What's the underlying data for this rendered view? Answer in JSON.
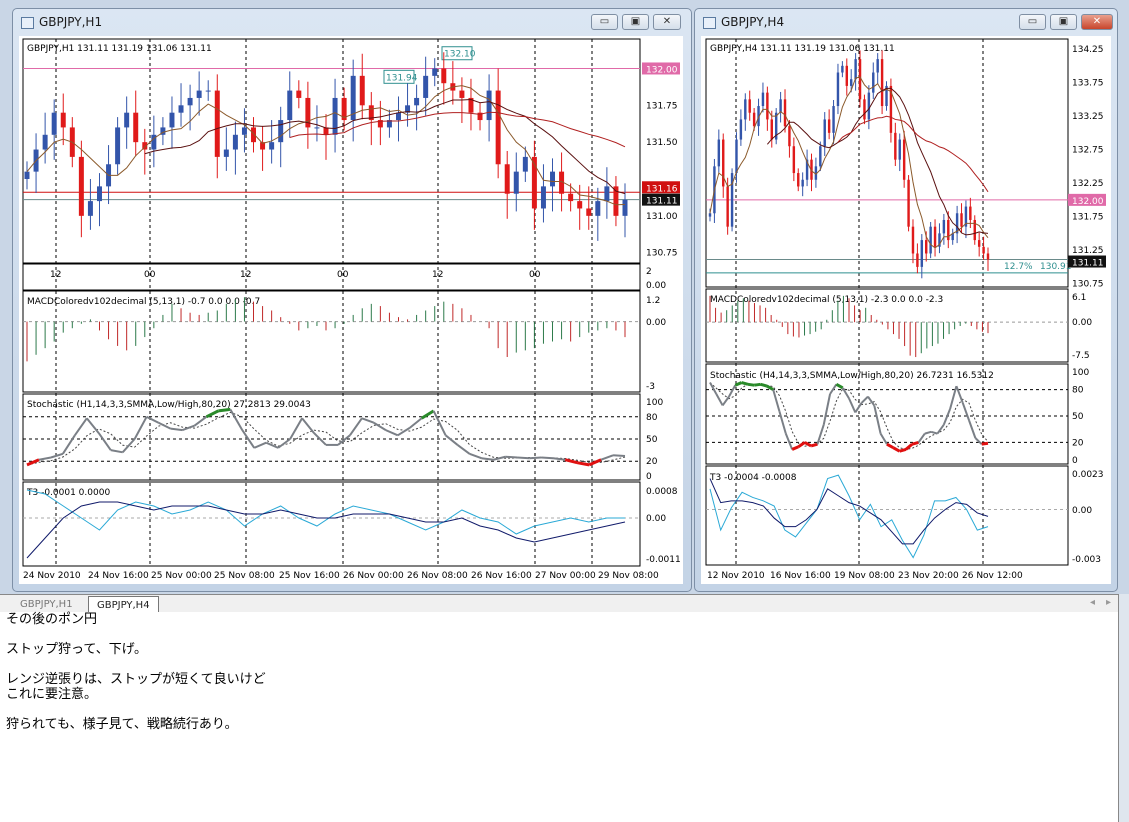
{
  "colors": {
    "bull": "#3355aa",
    "bear": "#e01a1a",
    "pink_line": "#e06aa8",
    "red_line": "#d01010",
    "teal": "#2f8f8f",
    "stoch": "#7a7f86",
    "macd_up": "#2c7a4a",
    "macd_dn": "#c02828",
    "t3_fast": "#2aa9d6",
    "t3_slow": "#101a6a"
  },
  "tabs": [
    {
      "label": "GBPJPY,H1",
      "active": false
    },
    {
      "label": "GBPJPY,H4",
      "active": true
    }
  ],
  "memo": {
    "lines": [
      "その後のポン円",
      "",
      "ストップ狩って、下げ。",
      "",
      "レンジ逆張りは、ストップが短くて良いけど",
      "これに要注意。",
      "",
      "狩られても、様子見て、戦略続行あり。"
    ]
  },
  "windows": [
    {
      "title": "GBPJPY,H1",
      "icon": "chart-window-icon",
      "buttons": {
        "minimize": "▭",
        "maximize": "▣",
        "close": "✕"
      },
      "info": "GBPJPY,H1  131.11 131.19 131.06 131.11",
      "price_axis": [
        "131.75",
        "131.50",
        "131.00",
        "130.75"
      ],
      "price_axis_values": [
        131.75,
        131.5,
        131.0,
        130.75
      ],
      "ylim": [
        130.68,
        132.2
      ],
      "hlines": [
        {
          "value": 132.0,
          "label": "132.00",
          "color": "#e06aa8"
        },
        {
          "value": 131.16,
          "label": "131.16",
          "color": "#d01010"
        },
        {
          "value": 131.11,
          "label": "131.11",
          "color": "#111111"
        }
      ],
      "boxes": [
        {
          "label": "132.10",
          "value": 132.1
        },
        {
          "label": "131.94",
          "value": 131.94
        }
      ],
      "closes": [
        131.3,
        131.45,
        131.55,
        131.7,
        131.6,
        131.4,
        131.0,
        131.1,
        131.2,
        131.35,
        131.6,
        131.7,
        131.5,
        131.45,
        131.55,
        131.6,
        131.7,
        131.75,
        131.8,
        131.85,
        131.85,
        131.4,
        131.45,
        131.55,
        131.6,
        131.5,
        131.45,
        131.5,
        131.65,
        131.85,
        131.8,
        131.6,
        131.6,
        131.55,
        131.8,
        131.65,
        131.95,
        131.75,
        131.65,
        131.6,
        131.65,
        131.7,
        131.75,
        131.8,
        131.95,
        132.0,
        131.9,
        131.85,
        131.8,
        131.7,
        131.65,
        131.85,
        131.35,
        131.15,
        131.3,
        131.4,
        131.05,
        131.2,
        131.3,
        131.15,
        131.1,
        131.05,
        131.0,
        131.1,
        131.2,
        131.0,
        131.11
      ],
      "hour_strip": {
        "labels": [
          "12",
          "00",
          "12",
          "00",
          "12",
          "00"
        ],
        "axis": [
          "2",
          "0.00"
        ]
      },
      "macd": {
        "label": "MACDColoredv102decimal (5,13,1) -0.7 0.0 0.0 -0.7",
        "axis": [
          "1.2",
          "0.00",
          "-3"
        ],
        "ylim": [
          -3,
          1.2
        ],
        "values": [
          -1.8,
          -1.5,
          -1.2,
          -0.9,
          -0.5,
          -0.3,
          -0.1,
          0.1,
          -0.4,
          -0.8,
          -1.1,
          -1.3,
          -1.1,
          -0.7,
          -0.3,
          0.3,
          0.8,
          0.6,
          0.4,
          0.3,
          0.4,
          0.5,
          0.8,
          1.0,
          1.1,
          0.9,
          0.7,
          0.5,
          0.2,
          -0.1,
          -0.4,
          -0.3,
          -0.2,
          -0.4,
          -0.3,
          -0.1,
          0.3,
          0.6,
          0.8,
          0.7,
          0.4,
          0.2,
          0.1,
          0.3,
          0.5,
          0.7,
          0.9,
          0.8,
          0.6,
          0.3,
          0.0,
          -0.3,
          -1.2,
          -1.6,
          -1.4,
          -1.3,
          -1.2,
          -1.0,
          -0.9,
          -0.8,
          -0.9,
          -0.7,
          -0.5,
          -0.4,
          -0.3,
          -0.4,
          -0.7
        ]
      },
      "stoch": {
        "label": "Stochastic (H1,14,3,3,SMMA,Low/High,80,20) 27.2813 29.0043",
        "axis": [
          "100",
          "80",
          "50",
          "20",
          "0"
        ],
        "levels": [
          80,
          50,
          20
        ],
        "main": [
          15,
          22,
          25,
          30,
          55,
          78,
          58,
          35,
          32,
          50,
          80,
          72,
          64,
          62,
          68,
          80,
          88,
          90,
          62,
          38,
          45,
          38,
          50,
          78,
          58,
          42,
          42,
          55,
          78,
          72,
          62,
          55,
          65,
          78,
          88,
          55,
          42,
          30,
          24,
          22,
          26,
          25,
          24,
          25,
          24,
          22,
          18,
          15,
          22,
          28,
          27
        ]
      },
      "t3": {
        "label": "T3 -0.0001 0.0000",
        "axis": [
          "0.0008",
          "0.00",
          "-0.0011"
        ],
        "ylim": [
          -0.0011,
          0.0008
        ],
        "fast": [
          0.0007,
          0.0006,
          0.0003,
          0.0,
          -0.0003,
          0.0002,
          0.0004,
          0.0003,
          0.0001,
          0.0002,
          0.0004,
          0.0002,
          -0.0002,
          0.0001,
          0.0003,
          0.0,
          -0.0002,
          0.0001,
          0.0003,
          0.0002,
          0.0001,
          -0.0001,
          -0.0003,
          -0.0001,
          0.0002,
          0.0,
          -0.0001,
          -0.0004,
          -0.0002,
          -0.0001,
          0.0,
          -0.0001,
          0.0,
          0.0
        ],
        "slow": [
          -0.001,
          -0.0005,
          0.0,
          0.0003,
          0.0004,
          0.0004,
          0.0003,
          0.0002,
          0.0003,
          0.0003,
          0.0003,
          0.0002,
          0.0001,
          0.0001,
          0.0002,
          0.0001,
          0.0,
          0.0,
          0.0001,
          0.0001,
          0.0001,
          0.0,
          -0.0001,
          -0.0001,
          0.0,
          -0.0002,
          -0.0003,
          -0.0005,
          -0.0006,
          -0.0005,
          -0.0004,
          -0.0003,
          -0.0002,
          -0.0001
        ]
      },
      "dates": [
        "24 Nov 2010",
        "24 Nov 16:00",
        "25 Nov 00:00",
        "25 Nov 08:00",
        "25 Nov 16:00",
        "26 Nov 00:00",
        "26 Nov 08:00",
        "26 Nov 16:00",
        "27 Nov 00:00",
        "29 Nov 08:00"
      ]
    },
    {
      "title": "GBPJPY,H4",
      "icon": "chart-window-icon",
      "buttons": {
        "minimize": "▭",
        "maximize": "▣",
        "close": "✕"
      },
      "info": "GBPJPY,H4  131.11 131.19 131.06 131.11",
      "price_axis": [
        "134.25",
        "133.75",
        "133.25",
        "132.75",
        "132.25",
        "131.75",
        "131.25",
        "130.75"
      ],
      "price_axis_values": [
        134.25,
        133.75,
        133.25,
        132.75,
        132.25,
        131.75,
        131.25,
        130.75
      ],
      "ylim": [
        130.7,
        134.4
      ],
      "hlines": [
        {
          "value": 132.0,
          "label": "132.00",
          "color": "#e06aa8"
        },
        {
          "value": 131.11,
          "label": "131.11",
          "color": "#111111"
        }
      ],
      "fib": {
        "label": "12.7%",
        "value_label": "130.91",
        "value": 130.91
      },
      "closes": [
        131.8,
        132.5,
        132.9,
        132.2,
        131.6,
        132.4,
        132.9,
        133.2,
        133.5,
        133.3,
        133.1,
        133.4,
        133.6,
        133.2,
        132.9,
        133.3,
        133.5,
        133.1,
        132.8,
        132.4,
        132.2,
        132.3,
        132.6,
        132.3,
        132.5,
        132.8,
        133.2,
        133.0,
        133.4,
        133.9,
        134.0,
        133.7,
        133.8,
        134.1,
        133.5,
        133.2,
        133.6,
        133.9,
        134.1,
        133.4,
        133.7,
        133.0,
        132.6,
        132.9,
        132.3,
        131.6,
        131.2,
        131.0,
        131.4,
        131.2,
        131.6,
        131.3,
        131.5,
        131.7,
        131.4,
        131.5,
        131.8,
        131.6,
        131.9,
        131.7,
        131.4,
        131.3,
        131.2,
        131.11
      ],
      "macd": {
        "label": "MACDColoredv102decimal (5,13,1) -2.3 0.0 0.0 -2.3",
        "axis": [
          "6.1",
          "0.00",
          "-7.5"
        ],
        "ylim": [
          -7.5,
          6.1
        ],
        "values": [
          5.5,
          3,
          2,
          2.5,
          3.5,
          4.5,
          5,
          4.5,
          4,
          3.5,
          3,
          1.5,
          0.5,
          -1,
          -2.5,
          -3,
          -3.2,
          -2.8,
          -2.5,
          -2.0,
          -1.5,
          0.5,
          2.5,
          4.5,
          5.5,
          5,
          3.5,
          2.5,
          3,
          1.5,
          0.5,
          -0.5,
          -1.5,
          -2.5,
          -3.5,
          -5,
          -7,
          -7.3,
          -6.5,
          -5.5,
          -5,
          -4.5,
          -3.5,
          -2.5,
          -1.5,
          -0.8,
          -0.3,
          -0.8,
          -1.5,
          -2.0,
          -2.3
        ]
      },
      "stoch": {
        "label": "Stochastic (H4,14,3,3,SMMA,Low/High,80,20) 26.7231 16.5312",
        "axis": [
          "100",
          "80",
          "50",
          "20",
          "0"
        ],
        "levels": [
          80,
          50,
          20
        ],
        "main": [
          88,
          75,
          62,
          72,
          85,
          88,
          86,
          85,
          86,
          84,
          80,
          55,
          30,
          12,
          15,
          20,
          16,
          18,
          40,
          75,
          86,
          82,
          70,
          54,
          65,
          72,
          62,
          30,
          18,
          14,
          10,
          12,
          18,
          20,
          30,
          32,
          30,
          40,
          58,
          84,
          65,
          45,
          25,
          18,
          19
        ]
      },
      "t3": {
        "label": "T3 -0.0004 -0.0008",
        "axis": [
          "0.0023",
          "0.00",
          "-0.003"
        ],
        "ylim": [
          -0.003,
          0.0023
        ],
        "fast": [
          0.0012,
          -0.0012,
          0.0001,
          0.001,
          0.0007,
          0.0005,
          0.0002,
          -0.0012,
          -0.0016,
          -0.0008,
          0.0,
          0.0018,
          0.002,
          0.0008,
          -0.0006,
          0.0003,
          -0.001,
          -0.0006,
          -0.0018,
          -0.0028,
          -0.0015,
          0.0005,
          0.0005,
          0.0007,
          0.0,
          -0.0012,
          -0.001
        ],
        "slow": [
          0.0018,
          0.0004,
          0.0005,
          0.0005,
          0.0004,
          0.0002,
          -0.0005,
          -0.001,
          -0.001,
          -0.0006,
          0.0,
          0.0012,
          0.0008,
          0.0004,
          0.0002,
          -0.0002,
          -0.0006,
          -0.0013,
          -0.002,
          -0.002,
          -0.0012,
          -0.0005,
          0.0,
          0.0004,
          0.0003,
          -0.0002,
          -0.0004
        ]
      },
      "dates": [
        "12 Nov 2010",
        "16 Nov 16:00",
        "19 Nov 08:00",
        "23 Nov 20:00",
        "26 Nov 12:00"
      ]
    }
  ]
}
